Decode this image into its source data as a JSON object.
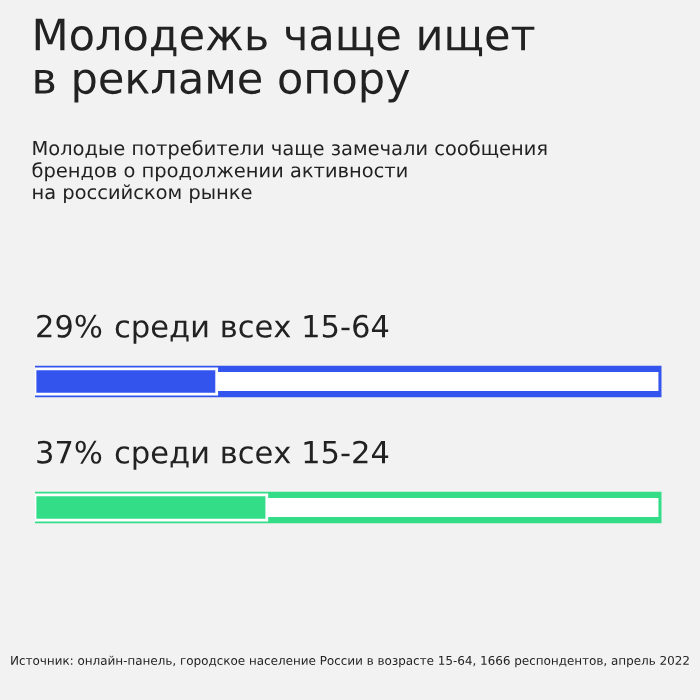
{
  "chart_data": {
    "type": "bar",
    "orientation": "horizontal",
    "title": "Молодежь чаще ищет\nв рекламе опору",
    "subtitle": "Молодые потребители чаще замечали сообщения\nбрендов о продолжении активности\nна российском рынке",
    "categories": [
      "среди всех 15-64",
      "среди всех 15-24"
    ],
    "values": [
      29,
      37
    ],
    "value_labels": [
      "29%",
      "37%"
    ],
    "colors": [
      "#3355ee",
      "#33dd88"
    ],
    "xlim": [
      0,
      100
    ],
    "annotations": [
      "Источник: онлайн-панель, городское население России в возрасте 15-64, 1666 респондентов, апрель 2022"
    ]
  }
}
